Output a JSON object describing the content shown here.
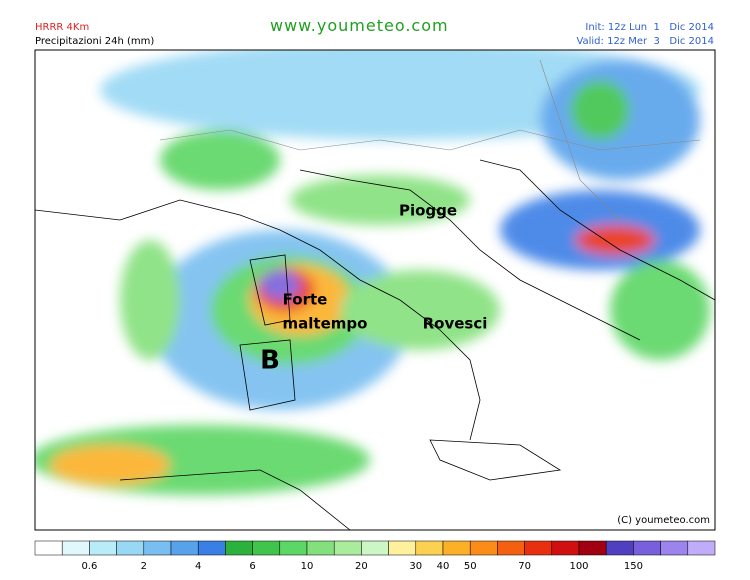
{
  "header": {
    "model": "HRRR 4Km",
    "product": "Precipitazioni 24h (mm)",
    "site": "www.youmeteo.com",
    "init": "Init: 12z Lun  1   Dic 2014",
    "valid": "Valid: 12z Mer  3   Dic 2014"
  },
  "map": {
    "labels": [
      "Piogge",
      "Forte",
      "maltempo",
      "Rovesci",
      "B"
    ],
    "copyright": "(C) youmeteo.com"
  },
  "legend": {
    "colors": [
      "#ffffff",
      "#e0f7fb",
      "#b8ecf8",
      "#98d8f4",
      "#78bef0",
      "#58a2ec",
      "#3a7fe6",
      "#2cb23c",
      "#40c44c",
      "#5cd664",
      "#84e07c",
      "#a8ec9c",
      "#ccf6c4",
      "#fff09c",
      "#fcd050",
      "#fcb028",
      "#fc8c18",
      "#f46010",
      "#e83010",
      "#d01010",
      "#a00010",
      "#5040c0",
      "#7860dc",
      "#9c84ec",
      "#c0acf8"
    ],
    "labels": [
      "0.6",
      "2",
      "4",
      "6",
      "10",
      "20",
      "30",
      "40",
      "50",
      "70",
      "100",
      "150"
    ]
  }
}
